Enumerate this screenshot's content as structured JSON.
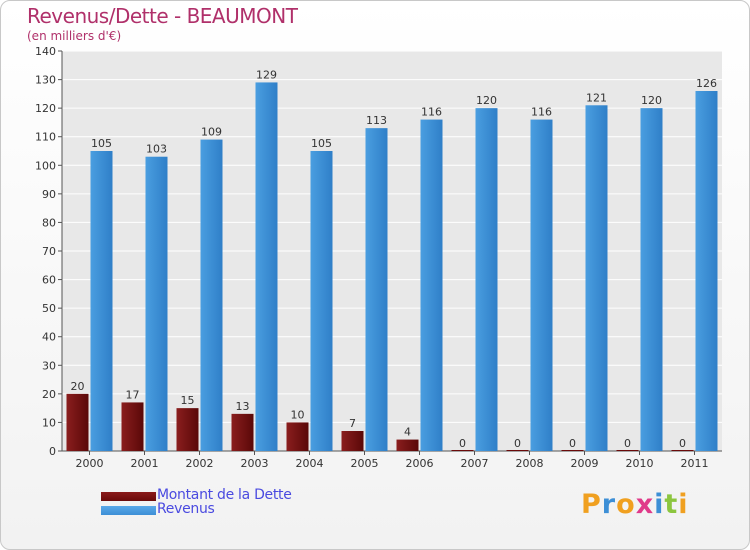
{
  "title": "Revenus/Dette - BEAUMONT",
  "subtitle": "(en milliers d'€)",
  "colors": {
    "title": "#b0306a",
    "dette": "#6b0a0a",
    "revenus": "#3d8fd6",
    "legend_text": "#4a4ae0",
    "grid": "#ffffff",
    "plot_bg": "#e8e8e8"
  },
  "chart_data": {
    "type": "bar",
    "title": "Revenus/Dette - BEAUMONT",
    "ylabel": "(en milliers d'€)",
    "xlabel": "",
    "categories": [
      "2000",
      "2001",
      "2002",
      "2003",
      "2004",
      "2005",
      "2006",
      "2007",
      "2008",
      "2009",
      "2010",
      "2011"
    ],
    "series": [
      {
        "name": "Montant de la Dette",
        "values": [
          20,
          17,
          15,
          13,
          10,
          7,
          4,
          0,
          0,
          0,
          0,
          0
        ],
        "color": "#6b0a0a"
      },
      {
        "name": "Revenus",
        "values": [
          105,
          103,
          109,
          129,
          105,
          113,
          116,
          120,
          116,
          121,
          120,
          126
        ],
        "color": "#3d8fd6"
      }
    ],
    "ylim": [
      0,
      140
    ],
    "yticks": [
      0,
      10,
      20,
      30,
      40,
      50,
      60,
      70,
      80,
      90,
      100,
      110,
      120,
      130,
      140
    ],
    "grid": true,
    "legend": "bottom-left"
  },
  "legend": {
    "items": [
      {
        "label": "Montant de la Dette",
        "color": "#6b0a0a"
      },
      {
        "label": "Revenus",
        "color": "#3d8fd6"
      }
    ]
  },
  "logo": {
    "text": "Proxiti",
    "letters": [
      {
        "ch": "P",
        "color": "#f0a020"
      },
      {
        "ch": "r",
        "color": "#3d8fd6"
      },
      {
        "ch": "o",
        "color": "#f0a020"
      },
      {
        "ch": "x",
        "color": "#e03a8a"
      },
      {
        "ch": "i",
        "color": "#3d8fd6"
      },
      {
        "ch": "t",
        "color": "#8cc63f"
      },
      {
        "ch": "i",
        "color": "#f0a020"
      }
    ]
  }
}
